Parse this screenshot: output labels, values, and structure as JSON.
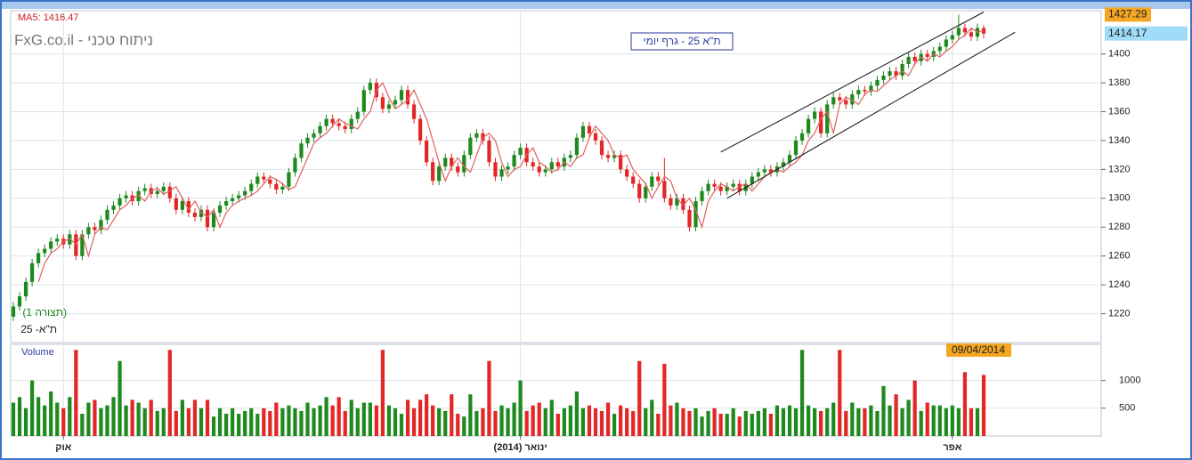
{
  "chart_data": {
    "type": "candlestick",
    "title": "FxG.co.il - ניתוח טכני",
    "subtitle": "ת\"א 25 - גרף יומי",
    "ma_label": "MA5: 1416.47",
    "instrument_label": "ת\"א- 25",
    "layout_label": "(תצורה 1)",
    "volume_label": "Volume",
    "last_date": "09/04/2014",
    "high_label": "1427.29",
    "last_label": "1414.17",
    "up_color": "#1e8a1e",
    "down_color": "#e32626",
    "ma_color": "#e06060",
    "candles_fields": [
      "open",
      "high",
      "low",
      "close",
      "volume"
    ],
    "candles": [
      [
        1218,
        1228,
        1215,
        1225,
        600
      ],
      [
        1225,
        1235,
        1222,
        1232,
        700
      ],
      [
        1232,
        1245,
        1229,
        1242,
        500
      ],
      [
        1242,
        1258,
        1239,
        1255,
        1000
      ],
      [
        1255,
        1265,
        1252,
        1262,
        700
      ],
      [
        1262,
        1268,
        1259,
        1265,
        550
      ],
      [
        1265,
        1273,
        1262,
        1270,
        800
      ],
      [
        1270,
        1275,
        1267,
        1272,
        600
      ],
      [
        1272,
        1275,
        1265,
        1268,
        500
      ],
      [
        1268,
        1278,
        1265,
        1275,
        700
      ],
      [
        1275,
        1278,
        1257,
        1260,
        1550
      ],
      [
        1260,
        1278,
        1257,
        1275,
        400
      ],
      [
        1275,
        1283,
        1272,
        1280,
        600
      ],
      [
        1280,
        1283,
        1275,
        1278,
        650
      ],
      [
        1278,
        1288,
        1275,
        1285,
        500
      ],
      [
        1285,
        1295,
        1282,
        1292,
        550
      ],
      [
        1292,
        1298,
        1289,
        1295,
        700
      ],
      [
        1295,
        1303,
        1292,
        1300,
        1350
      ],
      [
        1300,
        1305,
        1297,
        1302,
        550
      ],
      [
        1302,
        1305,
        1295,
        1298,
        650
      ],
      [
        1298,
        1308,
        1295,
        1305,
        600
      ],
      [
        1305,
        1310,
        1302,
        1307,
        500
      ],
      [
        1307,
        1310,
        1300,
        1303,
        650
      ],
      [
        1303,
        1308,
        1300,
        1305,
        450
      ],
      [
        1305,
        1311,
        1302,
        1308,
        500
      ],
      [
        1308,
        1311,
        1297,
        1300,
        1550
      ],
      [
        1300,
        1303,
        1289,
        1292,
        450
      ],
      [
        1292,
        1301,
        1289,
        1298,
        650
      ],
      [
        1298,
        1301,
        1287,
        1290,
        500
      ],
      [
        1290,
        1293,
        1284,
        1287,
        650
      ],
      [
        1287,
        1295,
        1284,
        1292,
        500
      ],
      [
        1292,
        1295,
        1277,
        1280,
        650
      ],
      [
        1280,
        1293,
        1277,
        1290,
        350
      ],
      [
        1290,
        1298,
        1287,
        1295,
        500
      ],
      [
        1295,
        1301,
        1292,
        1298,
        400
      ],
      [
        1298,
        1303,
        1295,
        1300,
        500
      ],
      [
        1300,
        1305,
        1297,
        1302,
        400
      ],
      [
        1302,
        1308,
        1299,
        1305,
        450
      ],
      [
        1305,
        1313,
        1302,
        1310,
        500
      ],
      [
        1310,
        1318,
        1307,
        1315,
        400
      ],
      [
        1315,
        1318,
        1310,
        1313,
        500
      ],
      [
        1313,
        1316,
        1307,
        1310,
        450
      ],
      [
        1310,
        1313,
        1303,
        1306,
        600
      ],
      [
        1306,
        1311,
        1303,
        1308,
        500
      ],
      [
        1308,
        1321,
        1305,
        1318,
        550
      ],
      [
        1318,
        1331,
        1315,
        1328,
        500
      ],
      [
        1328,
        1341,
        1325,
        1338,
        450
      ],
      [
        1338,
        1345,
        1335,
        1342,
        600
      ],
      [
        1342,
        1348,
        1339,
        1345,
        500
      ],
      [
        1345,
        1353,
        1342,
        1350,
        550
      ],
      [
        1350,
        1358,
        1347,
        1355,
        700
      ],
      [
        1355,
        1358,
        1349,
        1352,
        550
      ],
      [
        1352,
        1355,
        1347,
        1350,
        700
      ],
      [
        1350,
        1353,
        1345,
        1348,
        450
      ],
      [
        1348,
        1358,
        1345,
        1355,
        650
      ],
      [
        1355,
        1363,
        1352,
        1360,
        500
      ],
      [
        1360,
        1378,
        1357,
        1375,
        600
      ],
      [
        1375,
        1383,
        1372,
        1380,
        600
      ],
      [
        1380,
        1383,
        1367,
        1370,
        550
      ],
      [
        1370,
        1373,
        1359,
        1362,
        1550
      ],
      [
        1362,
        1368,
        1359,
        1365,
        550
      ],
      [
        1365,
        1371,
        1362,
        1368,
        500
      ],
      [
        1368,
        1378,
        1365,
        1375,
        400
      ],
      [
        1375,
        1378,
        1362,
        1365,
        650
      ],
      [
        1365,
        1368,
        1352,
        1355,
        500
      ],
      [
        1355,
        1358,
        1337,
        1340,
        650
      ],
      [
        1340,
        1343,
        1322,
        1325,
        750
      ],
      [
        1325,
        1328,
        1309,
        1312,
        550
      ],
      [
        1312,
        1325,
        1309,
        1322,
        500
      ],
      [
        1322,
        1331,
        1319,
        1328,
        450
      ],
      [
        1328,
        1331,
        1319,
        1322,
        750
      ],
      [
        1322,
        1325,
        1315,
        1318,
        400
      ],
      [
        1318,
        1333,
        1315,
        1330,
        350
      ],
      [
        1330,
        1345,
        1327,
        1342,
        750
      ],
      [
        1342,
        1348,
        1339,
        1345,
        450
      ],
      [
        1345,
        1348,
        1337,
        1340,
        500
      ],
      [
        1340,
        1343,
        1322,
        1325,
        1350
      ],
      [
        1325,
        1328,
        1312,
        1315,
        450
      ],
      [
        1315,
        1323,
        1312,
        1320,
        550
      ],
      [
        1320,
        1325,
        1317,
        1322,
        500
      ],
      [
        1322,
        1333,
        1319,
        1330,
        600
      ],
      [
        1330,
        1338,
        1327,
        1335,
        1000
      ],
      [
        1335,
        1338,
        1322,
        1325,
        450
      ],
      [
        1325,
        1328,
        1319,
        1322,
        550
      ],
      [
        1322,
        1325,
        1315,
        1318,
        600
      ],
      [
        1318,
        1323,
        1315,
        1320,
        500
      ],
      [
        1320,
        1328,
        1317,
        1325,
        650
      ],
      [
        1325,
        1328,
        1319,
        1322,
        400
      ],
      [
        1322,
        1331,
        1319,
        1328,
        500
      ],
      [
        1328,
        1333,
        1325,
        1330,
        550
      ],
      [
        1330,
        1345,
        1327,
        1342,
        800
      ],
      [
        1342,
        1353,
        1339,
        1350,
        500
      ],
      [
        1350,
        1353,
        1342,
        1345,
        550
      ],
      [
        1345,
        1348,
        1337,
        1340,
        500
      ],
      [
        1340,
        1343,
        1327,
        1330,
        450
      ],
      [
        1330,
        1333,
        1325,
        1328,
        600
      ],
      [
        1328,
        1333,
        1325,
        1330,
        400
      ],
      [
        1330,
        1333,
        1317,
        1320,
        550
      ],
      [
        1320,
        1323,
        1312,
        1315,
        500
      ],
      [
        1315,
        1318,
        1307,
        1310,
        450
      ],
      [
        1310,
        1313,
        1297,
        1300,
        1350
      ],
      [
        1300,
        1311,
        1297,
        1308,
        500
      ],
      [
        1308,
        1318,
        1305,
        1315,
        650
      ],
      [
        1315,
        1318,
        1309,
        1312,
        400
      ],
      [
        1312,
        1328,
        1297,
        1300,
        1300
      ],
      [
        1300,
        1303,
        1292,
        1295,
        550
      ],
      [
        1295,
        1303,
        1292,
        1300,
        600
      ],
      [
        1300,
        1303,
        1289,
        1292,
        500
      ],
      [
        1292,
        1295,
        1277,
        1280,
        450
      ],
      [
        1280,
        1301,
        1277,
        1298,
        500
      ],
      [
        1298,
        1308,
        1295,
        1305,
        350
      ],
      [
        1305,
        1313,
        1302,
        1310,
        450
      ],
      [
        1310,
        1313,
        1305,
        1308,
        500
      ],
      [
        1308,
        1311,
        1302,
        1305,
        400
      ],
      [
        1305,
        1311,
        1302,
        1308,
        400
      ],
      [
        1308,
        1313,
        1305,
        1310,
        500
      ],
      [
        1310,
        1313,
        1302,
        1305,
        350
      ],
      [
        1305,
        1313,
        1302,
        1310,
        450
      ],
      [
        1310,
        1318,
        1307,
        1315,
        400
      ],
      [
        1315,
        1321,
        1312,
        1318,
        450
      ],
      [
        1318,
        1323,
        1315,
        1320,
        500
      ],
      [
        1320,
        1323,
        1315,
        1318,
        400
      ],
      [
        1318,
        1325,
        1315,
        1322,
        550
      ],
      [
        1322,
        1328,
        1319,
        1325,
        500
      ],
      [
        1325,
        1333,
        1322,
        1330,
        550
      ],
      [
        1330,
        1343,
        1327,
        1340,
        500
      ],
      [
        1340,
        1348,
        1337,
        1345,
        1550
      ],
      [
        1345,
        1358,
        1342,
        1355,
        550
      ],
      [
        1355,
        1363,
        1352,
        1360,
        500
      ],
      [
        1360,
        1363,
        1342,
        1345,
        450
      ],
      [
        1345,
        1368,
        1342,
        1365,
        500
      ],
      [
        1365,
        1373,
        1362,
        1370,
        600
      ],
      [
        1370,
        1373,
        1365,
        1368,
        1550
      ],
      [
        1368,
        1371,
        1362,
        1365,
        450
      ],
      [
        1365,
        1375,
        1362,
        1372,
        600
      ],
      [
        1372,
        1378,
        1369,
        1375,
        500
      ],
      [
        1375,
        1378,
        1371,
        1374,
        500
      ],
      [
        1374,
        1381,
        1371,
        1378,
        550
      ],
      [
        1378,
        1385,
        1375,
        1382,
        450
      ],
      [
        1382,
        1388,
        1379,
        1385,
        900
      ],
      [
        1385,
        1391,
        1382,
        1388,
        550
      ],
      [
        1388,
        1391,
        1382,
        1385,
        750
      ],
      [
        1385,
        1396,
        1382,
        1393,
        500
      ],
      [
        1393,
        1401,
        1390,
        1398,
        650
      ],
      [
        1398,
        1401,
        1392,
        1395,
        1000
      ],
      [
        1395,
        1403,
        1392,
        1400,
        450
      ],
      [
        1400,
        1403,
        1395,
        1398,
        600
      ],
      [
        1398,
        1405,
        1395,
        1402,
        550
      ],
      [
        1402,
        1408,
        1399,
        1405,
        550
      ],
      [
        1405,
        1413,
        1402,
        1410,
        500
      ],
      [
        1410,
        1416,
        1407,
        1413,
        550
      ],
      [
        1413,
        1427.29,
        1410,
        1418,
        500
      ],
      [
        1418,
        1421,
        1412,
        1415,
        1150
      ],
      [
        1415,
        1418,
        1409,
        1412,
        500
      ],
      [
        1412,
        1421,
        1409,
        1418,
        500
      ],
      [
        1418,
        1420,
        1411,
        1414.17,
        1100
      ]
    ],
    "ma5": {
      "values": [
        null,
        null,
        null,
        null,
        1242,
        1255,
        1262,
        1265,
        1270,
        1272,
        1268,
        1275,
        1260,
        1275,
        1280,
        1278,
        1285,
        1292,
        1295,
        1300,
        1302,
        1298,
        1305,
        1307,
        1303,
        1305,
        1308,
        1300,
        1292,
        1298,
        1290,
        1287,
        1292,
        1280,
        1290,
        1295,
        1298,
        1300,
        1302,
        1305,
        1310,
        1315,
        1313,
        1310,
        1306,
        1308,
        1318,
        1328,
        1338,
        1342,
        1345,
        1350,
        1355,
        1352,
        1350,
        1348,
        1355,
        1360,
        1375,
        1380,
        1370,
        1362,
        1365,
        1368,
        1375,
        1365,
        1355,
        1340,
        1325,
        1312,
        1322,
        1328,
        1322,
        1318,
        1330,
        1342,
        1345,
        1340,
        1325,
        1315,
        1320,
        1322,
        1330,
        1335,
        1325,
        1322,
        1318,
        1320,
        1325,
        1322,
        1328,
        1330,
        1342,
        1350,
        1345,
        1340,
        1330,
        1328,
        1330,
        1320,
        1315,
        1310,
        1300,
        1308,
        1315,
        1312,
        1300,
        1295,
        1300,
        1292,
        1280,
        1298,
        1305,
        1310,
        1308,
        1305,
        1308,
        1310,
        1305,
        1310,
        1315,
        1318,
        1320,
        1318,
        1322,
        1325,
        1330,
        1340,
        1345,
        1355,
        1360,
        1345,
        1365,
        1370,
        1368,
        1365,
        1372,
        1375,
        1374,
        1378,
        1382,
        1385,
        1388,
        1385,
        1393,
        1398,
        1395,
        1400,
        1398,
        1402,
        1405,
        1410,
        1413,
        1418,
        1415,
        1416.47
      ]
    },
    "date_labels": [
      {
        "index": 8,
        "label": "אוק"
      },
      {
        "index": 81,
        "label": "ינואר (2014)"
      },
      {
        "index": 150,
        "label": "אפר"
      }
    ],
    "channel_lines": [
      {
        "start": [
          113,
          1332
        ],
        "end": [
          155,
          1429
        ]
      },
      {
        "start": [
          114,
          1300
        ],
        "end": [
          160,
          1415
        ]
      }
    ],
    "ylim": [
      1200,
      1430
    ],
    "yticks": [
      1220,
      1240,
      1260,
      1280,
      1300,
      1320,
      1340,
      1360,
      1380,
      1400
    ],
    "volume_ylim": [
      0,
      1650
    ],
    "volume_yticks": [
      500,
      1000
    ],
    "grid": true
  }
}
